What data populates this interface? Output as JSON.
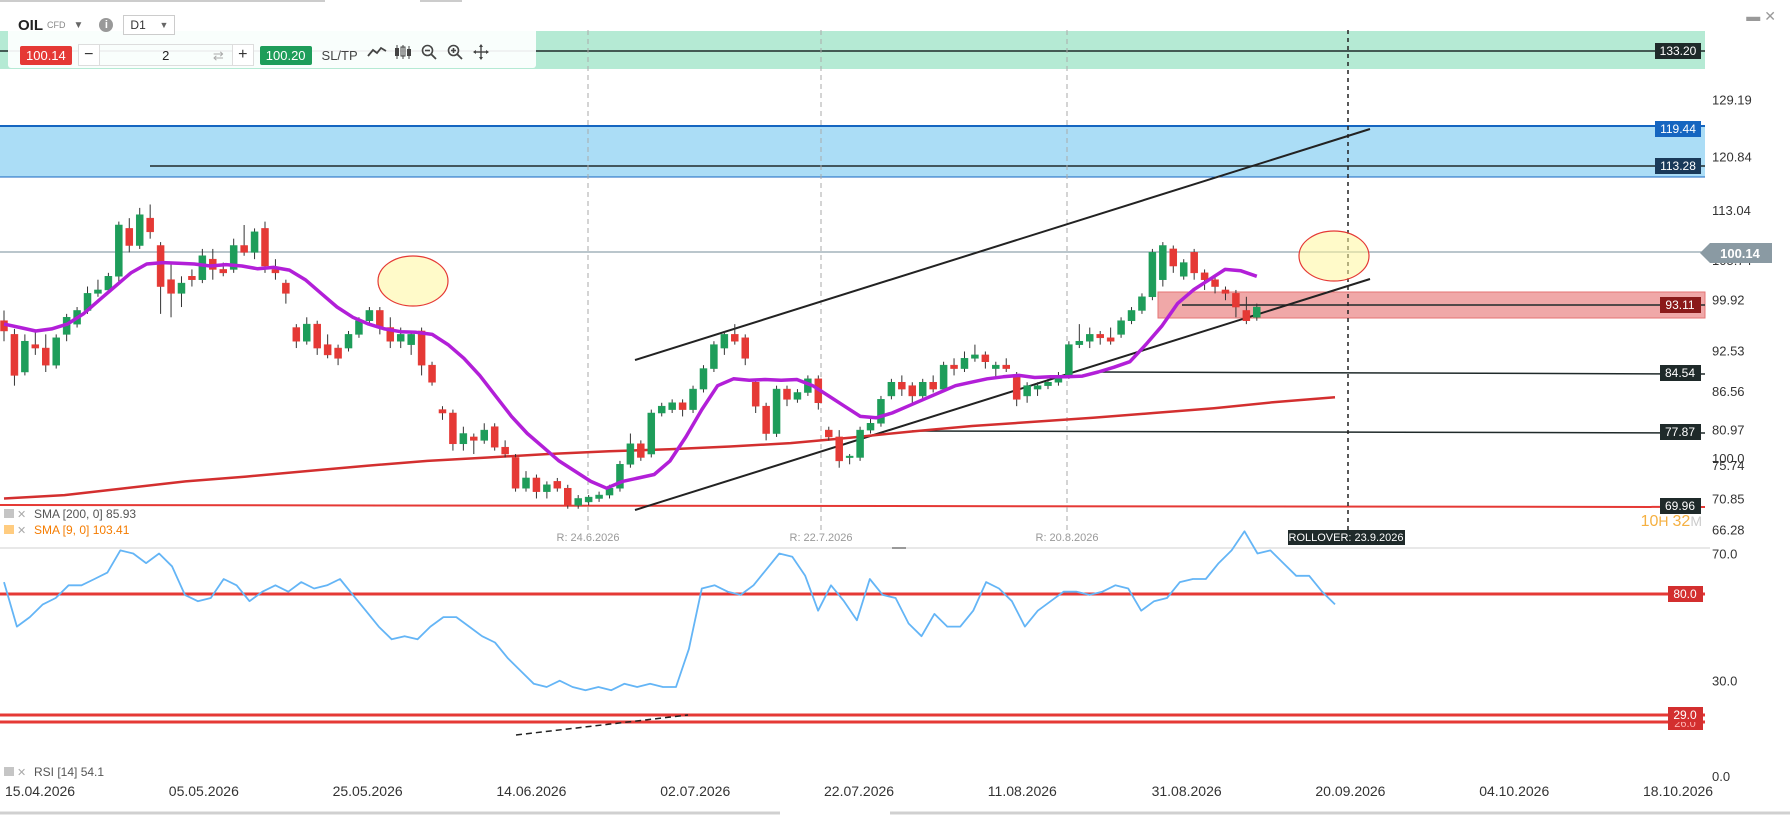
{
  "toolbar": {
    "symbol": "OIL",
    "symbol_type": "CFD",
    "timeframe": "D1",
    "sell_price": "100.14",
    "buy_price": "100.20",
    "quantity": "2",
    "minus_label": "−",
    "plus_label": "+",
    "sltp_label": "SL/TP",
    "icons": [
      "line-chart-icon",
      "candles-icon",
      "zoom-out-icon",
      "zoom-in-icon",
      "crosshair-icon"
    ]
  },
  "window_controls": [
    "minimize-icon",
    "close-icon"
  ],
  "colors": {
    "bull": "#1e9d5a",
    "bear": "#e53935",
    "sma9": "#b21fd8",
    "sma200": "#d32f2f",
    "rsi": "#64b5f6",
    "zone_green": "#a8e6cc",
    "zone_blue": "#a7dbf6",
    "zone_red": "#f0a8a8"
  },
  "chart_data": [
    {
      "type": "candlestick",
      "y_ticks": [
        "129.19",
        "120.84",
        "113.04",
        "105.74",
        "99.92",
        "92.53",
        "86.56",
        "80.97",
        "75.74",
        "70.85",
        "66.28"
      ],
      "x_ticks": [
        "15.04.2026",
        "05.05.2026",
        "25.05.2026",
        "14.06.2026",
        "02.07.2026",
        "22.07.2026",
        "11.08.2026",
        "31.08.2026",
        "20.09.2026",
        "04.10.2026",
        "18.10.2026"
      ],
      "ylim": [
        66.28,
        129.19
      ],
      "price_label": "100.14",
      "indicators": [
        {
          "label": "SMA [200, 0] 85.93",
          "color": "#d32f2f"
        },
        {
          "label": "SMA [9, 0] 103.41",
          "color": "#b21fd8"
        }
      ],
      "levels": [
        "133.20",
        "119.44",
        "113.28",
        "93.11",
        "84.54",
        "77.87",
        "69.96"
      ],
      "rollover_markers": [
        "R: 24.6.2026",
        "R: 22.7.2026",
        "R: 20.8.2026"
      ],
      "rollover_label": "ROLLOVER: 23.9.2026",
      "countdown": [
        "10",
        "H",
        "32",
        "M"
      ],
      "candles": [
        {
          "o": 97.0,
          "h": 98.5,
          "l": 94.0,
          "c": 95.5
        },
        {
          "o": 95.0,
          "h": 95.8,
          "l": 87.5,
          "c": 89.0
        },
        {
          "o": 89.5,
          "h": 95.0,
          "l": 89.0,
          "c": 94.0
        },
        {
          "o": 93.5,
          "h": 95.5,
          "l": 92.0,
          "c": 93.0
        },
        {
          "o": 93.0,
          "h": 95.0,
          "l": 89.5,
          "c": 90.5
        },
        {
          "o": 90.5,
          "h": 95.0,
          "l": 90.0,
          "c": 94.5
        },
        {
          "o": 95.0,
          "h": 98.0,
          "l": 94.0,
          "c": 97.5
        },
        {
          "o": 96.5,
          "h": 99.0,
          "l": 96.0,
          "c": 98.5
        },
        {
          "o": 98.5,
          "h": 102.0,
          "l": 98.0,
          "c": 101.0
        },
        {
          "o": 101.0,
          "h": 103.0,
          "l": 100.5,
          "c": 101.5
        },
        {
          "o": 101.5,
          "h": 104.0,
          "l": 101.0,
          "c": 103.5
        },
        {
          "o": 103.5,
          "h": 111.5,
          "l": 102.5,
          "c": 111.0
        },
        {
          "o": 110.5,
          "h": 112.0,
          "l": 107.0,
          "c": 108.0
        },
        {
          "o": 108.0,
          "h": 113.5,
          "l": 107.5,
          "c": 112.5
        },
        {
          "o": 112.0,
          "h": 114.0,
          "l": 109.0,
          "c": 110.0
        },
        {
          "o": 108.0,
          "h": 108.5,
          "l": 98.0,
          "c": 102.0
        },
        {
          "o": 103.0,
          "h": 105.5,
          "l": 97.5,
          "c": 101.0
        },
        {
          "o": 101.0,
          "h": 103.5,
          "l": 99.0,
          "c": 102.5
        },
        {
          "o": 103.5,
          "h": 104.5,
          "l": 102.0,
          "c": 103.0
        },
        {
          "o": 103.0,
          "h": 107.5,
          "l": 102.5,
          "c": 106.5
        },
        {
          "o": 106.0,
          "h": 107.5,
          "l": 103.0,
          "c": 104.5
        },
        {
          "o": 104.5,
          "h": 105.5,
          "l": 103.5,
          "c": 104.0
        },
        {
          "o": 104.5,
          "h": 109.0,
          "l": 104.0,
          "c": 108.0
        },
        {
          "o": 108.0,
          "h": 111.0,
          "l": 106.5,
          "c": 107.0
        },
        {
          "o": 107.0,
          "h": 110.5,
          "l": 106.0,
          "c": 110.0
        },
        {
          "o": 110.5,
          "h": 111.5,
          "l": 104.0,
          "c": 105.0
        },
        {
          "o": 104.5,
          "h": 106.0,
          "l": 103.0,
          "c": 104.0
        },
        {
          "o": 102.5,
          "h": 103.0,
          "l": 99.5,
          "c": 101.0
        },
        {
          "o": 96.0,
          "h": 96.5,
          "l": 93.0,
          "c": 94.0
        },
        {
          "o": 94.0,
          "h": 97.5,
          "l": 93.5,
          "c": 96.5
        },
        {
          "o": 96.5,
          "h": 97.0,
          "l": 92.0,
          "c": 93.0
        },
        {
          "o": 93.5,
          "h": 95.0,
          "l": 91.5,
          "c": 92.0
        },
        {
          "o": 93.0,
          "h": 93.5,
          "l": 90.5,
          "c": 91.5
        },
        {
          "o": 93.0,
          "h": 95.5,
          "l": 92.5,
          "c": 95.0
        },
        {
          "o": 95.0,
          "h": 97.5,
          "l": 94.5,
          "c": 97.0
        },
        {
          "o": 97.0,
          "h": 99.0,
          "l": 96.5,
          "c": 98.5
        },
        {
          "o": 98.5,
          "h": 99.0,
          "l": 95.0,
          "c": 96.0
        },
        {
          "o": 96.0,
          "h": 97.5,
          "l": 93.0,
          "c": 94.0
        },
        {
          "o": 94.0,
          "h": 96.0,
          "l": 93.0,
          "c": 95.0
        },
        {
          "o": 93.5,
          "h": 95.5,
          "l": 92.0,
          "c": 95.0
        },
        {
          "o": 95.5,
          "h": 96.0,
          "l": 89.0,
          "c": 90.5
        },
        {
          "o": 90.5,
          "h": 91.0,
          "l": 87.5,
          "c": 88.0
        },
        {
          "o": 84.0,
          "h": 84.5,
          "l": 82.5,
          "c": 83.5
        },
        {
          "o": 83.5,
          "h": 84.0,
          "l": 78.0,
          "c": 79.0
        },
        {
          "o": 79.0,
          "h": 81.5,
          "l": 78.0,
          "c": 80.5
        },
        {
          "o": 80.0,
          "h": 80.5,
          "l": 77.5,
          "c": 79.5
        },
        {
          "o": 79.5,
          "h": 82.0,
          "l": 79.0,
          "c": 81.0
        },
        {
          "o": 81.5,
          "h": 82.0,
          "l": 78.0,
          "c": 78.5
        },
        {
          "o": 78.5,
          "h": 79.5,
          "l": 77.0,
          "c": 77.5
        },
        {
          "o": 77.0,
          "h": 77.5,
          "l": 72.0,
          "c": 72.5
        },
        {
          "o": 72.5,
          "h": 75.0,
          "l": 72.0,
          "c": 74.0
        },
        {
          "o": 74.0,
          "h": 74.5,
          "l": 71.0,
          "c": 72.0
        },
        {
          "o": 72.0,
          "h": 73.5,
          "l": 71.0,
          "c": 73.0
        },
        {
          "o": 73.5,
          "h": 74.0,
          "l": 72.0,
          "c": 72.5
        },
        {
          "o": 72.5,
          "h": 73.0,
          "l": 69.5,
          "c": 70.0
        },
        {
          "o": 70.0,
          "h": 71.5,
          "l": 69.5,
          "c": 71.0
        },
        {
          "o": 70.5,
          "h": 71.5,
          "l": 70.0,
          "c": 71.2
        },
        {
          "o": 71.0,
          "h": 72.0,
          "l": 70.5,
          "c": 71.5
        },
        {
          "o": 71.5,
          "h": 73.0,
          "l": 71.0,
          "c": 72.5
        },
        {
          "o": 72.5,
          "h": 76.5,
          "l": 72.0,
          "c": 76.0
        },
        {
          "o": 76.0,
          "h": 80.5,
          "l": 75.5,
          "c": 79.0
        },
        {
          "o": 79.0,
          "h": 79.5,
          "l": 76.5,
          "c": 77.0
        },
        {
          "o": 77.5,
          "h": 84.0,
          "l": 77.0,
          "c": 83.5
        },
        {
          "o": 83.5,
          "h": 85.0,
          "l": 83.0,
          "c": 84.5
        },
        {
          "o": 84.0,
          "h": 85.5,
          "l": 83.5,
          "c": 85.0
        },
        {
          "o": 85.0,
          "h": 85.5,
          "l": 83.0,
          "c": 84.0
        },
        {
          "o": 84.0,
          "h": 87.5,
          "l": 83.5,
          "c": 87.0
        },
        {
          "o": 87.0,
          "h": 90.5,
          "l": 86.5,
          "c": 90.0
        },
        {
          "o": 90.0,
          "h": 94.0,
          "l": 89.5,
          "c": 93.5
        },
        {
          "o": 93.0,
          "h": 95.5,
          "l": 92.0,
          "c": 95.0
        },
        {
          "o": 95.0,
          "h": 96.5,
          "l": 93.5,
          "c": 94.0
        },
        {
          "o": 94.5,
          "h": 95.0,
          "l": 90.5,
          "c": 91.5
        },
        {
          "o": 88.0,
          "h": 88.5,
          "l": 83.5,
          "c": 84.5
        },
        {
          "o": 84.5,
          "h": 85.0,
          "l": 79.5,
          "c": 80.5
        },
        {
          "o": 80.5,
          "h": 87.5,
          "l": 80.0,
          "c": 87.0
        },
        {
          "o": 87.0,
          "h": 87.5,
          "l": 84.5,
          "c": 85.5
        },
        {
          "o": 85.5,
          "h": 87.0,
          "l": 85.0,
          "c": 86.5
        },
        {
          "o": 86.5,
          "h": 89.0,
          "l": 86.0,
          "c": 88.5
        },
        {
          "o": 88.5,
          "h": 89.0,
          "l": 84.0,
          "c": 85.0
        },
        {
          "o": 81.0,
          "h": 81.5,
          "l": 79.5,
          "c": 80.0
        },
        {
          "o": 80.0,
          "h": 81.0,
          "l": 75.5,
          "c": 76.5
        },
        {
          "o": 77.0,
          "h": 77.5,
          "l": 76.0,
          "c": 77.2
        },
        {
          "o": 77.0,
          "h": 81.5,
          "l": 76.5,
          "c": 81.0
        },
        {
          "o": 81.0,
          "h": 83.0,
          "l": 80.5,
          "c": 82.0
        },
        {
          "o": 82.0,
          "h": 86.0,
          "l": 81.5,
          "c": 85.5
        },
        {
          "o": 86.0,
          "h": 88.5,
          "l": 85.5,
          "c": 88.0
        },
        {
          "o": 88.0,
          "h": 89.0,
          "l": 86.0,
          "c": 87.0
        },
        {
          "o": 87.5,
          "h": 88.0,
          "l": 85.0,
          "c": 86.0
        },
        {
          "o": 86.0,
          "h": 88.5,
          "l": 85.5,
          "c": 88.0
        },
        {
          "o": 88.0,
          "h": 89.0,
          "l": 86.5,
          "c": 87.0
        },
        {
          "o": 87.0,
          "h": 91.0,
          "l": 86.5,
          "c": 90.5
        },
        {
          "o": 90.5,
          "h": 91.5,
          "l": 89.0,
          "c": 90.0
        },
        {
          "o": 90.0,
          "h": 92.5,
          "l": 89.5,
          "c": 91.5
        },
        {
          "o": 91.5,
          "h": 93.5,
          "l": 91.0,
          "c": 92.0
        },
        {
          "o": 92.0,
          "h": 92.5,
          "l": 90.0,
          "c": 91.0
        },
        {
          "o": 90.0,
          "h": 91.0,
          "l": 88.5,
          "c": 90.5
        },
        {
          "o": 90.5,
          "h": 91.5,
          "l": 89.5,
          "c": 90.0
        },
        {
          "o": 89.0,
          "h": 89.5,
          "l": 84.5,
          "c": 85.5
        },
        {
          "o": 86.0,
          "h": 88.0,
          "l": 85.0,
          "c": 87.5
        },
        {
          "o": 87.0,
          "h": 88.0,
          "l": 86.0,
          "c": 87.5
        },
        {
          "o": 87.5,
          "h": 88.5,
          "l": 87.0,
          "c": 88.0
        },
        {
          "o": 88.0,
          "h": 89.5,
          "l": 87.5,
          "c": 89.0
        },
        {
          "o": 89.0,
          "h": 94.0,
          "l": 88.5,
          "c": 93.5
        },
        {
          "o": 93.5,
          "h": 96.5,
          "l": 93.0,
          "c": 94.0
        },
        {
          "o": 94.0,
          "h": 96.0,
          "l": 93.0,
          "c": 95.0
        },
        {
          "o": 95.0,
          "h": 95.5,
          "l": 93.5,
          "c": 94.5
        },
        {
          "o": 94.5,
          "h": 96.0,
          "l": 93.5,
          "c": 94.0
        },
        {
          "o": 95.0,
          "h": 97.5,
          "l": 94.5,
          "c": 97.0
        },
        {
          "o": 97.0,
          "h": 99.0,
          "l": 96.5,
          "c": 98.5
        },
        {
          "o": 98.5,
          "h": 101.0,
          "l": 98.0,
          "c": 100.5
        },
        {
          "o": 100.5,
          "h": 107.5,
          "l": 100.0,
          "c": 107.0
        },
        {
          "o": 103.0,
          "h": 108.5,
          "l": 102.0,
          "c": 108.0
        },
        {
          "o": 107.5,
          "h": 108.0,
          "l": 104.0,
          "c": 105.0
        },
        {
          "o": 103.5,
          "h": 106.0,
          "l": 103.0,
          "c": 105.5
        },
        {
          "o": 107.0,
          "h": 107.5,
          "l": 103.0,
          "c": 104.0
        },
        {
          "o": 104.0,
          "h": 104.5,
          "l": 101.5,
          "c": 103.0
        },
        {
          "o": 103.0,
          "h": 103.5,
          "l": 101.0,
          "c": 102.0
        },
        {
          "o": 101.5,
          "h": 102.0,
          "l": 100.0,
          "c": 101.0
        },
        {
          "o": 101.0,
          "h": 101.5,
          "l": 97.5,
          "c": 99.0
        },
        {
          "o": 98.5,
          "h": 100.5,
          "l": 96.5,
          "c": 97.0
        },
        {
          "o": 97.5,
          "h": 99.5,
          "l": 97.0,
          "c": 99.0
        }
      ],
      "sma9": [
        96.5,
        96.0,
        95.5,
        95.8,
        96.5,
        98,
        100,
        102,
        104,
        105.3,
        105.5,
        105.4,
        105.3,
        105,
        105.2,
        105,
        104.6,
        104.8,
        104.4,
        103,
        101,
        99,
        97.5,
        96.5,
        95.8,
        95.4,
        95.3,
        95,
        93.5,
        91.5,
        89,
        86,
        83,
        80.5,
        78.5,
        76.5,
        75,
        73.5,
        72.5,
        73.5,
        74,
        74.5,
        76.5,
        80,
        84,
        87.5,
        88.5,
        88.3,
        88.4,
        88.3,
        88.4,
        87.5,
        86,
        84.5,
        83,
        82.8,
        83.5,
        84.5,
        85.5,
        86.5,
        87.5,
        88,
        88.5,
        88.8,
        89,
        88.7,
        88.8,
        88.8,
        88.9,
        89.5,
        90.2,
        91,
        93.5,
        96.2,
        99.5,
        101.5,
        103,
        104.5,
        104.3,
        103.5
      ],
      "sma200": [
        71.0,
        71.5,
        72.5,
        73.5,
        74.2,
        75.0,
        75.8,
        76.5,
        77.0,
        77.5,
        77.9,
        78.2,
        78.6,
        79.1,
        79.9,
        80.8,
        81.6,
        82.2,
        82.8,
        83.5,
        84.2,
        85.1,
        85.8
      ],
      "annotations": [
        "ellipse-left",
        "ellipse-right"
      ]
    },
    {
      "type": "line",
      "indicator": "RSI [14] 54.1",
      "y_ticks": [
        "100.0",
        "70.0",
        "30.0",
        "0.0"
      ],
      "ylim": [
        0,
        100
      ],
      "levels": [
        "80.0",
        "29.0",
        "26.0"
      ],
      "values": [
        61,
        47,
        50,
        54,
        56,
        60,
        60,
        62,
        64,
        71,
        70,
        67,
        70,
        66,
        57,
        55,
        56,
        62,
        60,
        55,
        58,
        60,
        58,
        61,
        59,
        60,
        62,
        57,
        52,
        47,
        43,
        44,
        43,
        47,
        50,
        50,
        47,
        44,
        42,
        37,
        33,
        29,
        28,
        30,
        28,
        27,
        28,
        27,
        29,
        28,
        29,
        28,
        28,
        40,
        59,
        60,
        58,
        57,
        60,
        65,
        70,
        69,
        63,
        52,
        60,
        55,
        49,
        62,
        57,
        56,
        48,
        44,
        51,
        47,
        47,
        52,
        61,
        59,
        55,
        47,
        52,
        55,
        58,
        58,
        57,
        58,
        60,
        59,
        52,
        55,
        56,
        61,
        62,
        62,
        67,
        71,
        77,
        70,
        71,
        67,
        63,
        63,
        58,
        54
      ]
    }
  ]
}
